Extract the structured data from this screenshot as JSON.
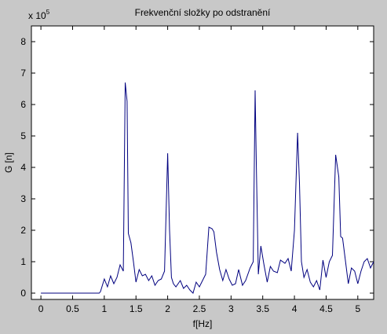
{
  "chart_data": {
    "type": "line",
    "title": "Frekvenční složky po odstranění",
    "xlabel": "f[Hz]",
    "ylabel": "G [n]",
    "y_multiplier_label": "x 10",
    "y_multiplier_exponent": "5",
    "xlim": [
      -0.15,
      5.25
    ],
    "ylim": [
      -0.2,
      8.5
    ],
    "xticks": [
      0,
      0.5,
      1,
      1.5,
      2,
      2.5,
      3,
      3.5,
      4,
      4.5,
      5
    ],
    "xtick_labels": [
      "0",
      "0.5",
      "1",
      "1.5",
      "2",
      "2.5",
      "3",
      "3.5",
      "4",
      "4.5",
      "5"
    ],
    "yticks": [
      0,
      1,
      2,
      3,
      4,
      5,
      6,
      7,
      8
    ],
    "ytick_labels": [
      "0",
      "1",
      "2",
      "3",
      "4",
      "5",
      "6",
      "7",
      "8"
    ],
    "grid": false,
    "line_color": "#00007f",
    "background_color": "#ffffff",
    "figure_color": "#c8c8c8",
    "series": [
      {
        "x": [
          0.0,
          0.92,
          0.94,
          1.0,
          1.05,
          1.1,
          1.15,
          1.2,
          1.25,
          1.3,
          1.33,
          1.36,
          1.38,
          1.42,
          1.46,
          1.5,
          1.55,
          1.6,
          1.65,
          1.7,
          1.75,
          1.8,
          1.85,
          1.9,
          1.95,
          2.0,
          2.03,
          2.06,
          2.09,
          2.13,
          2.2,
          2.25,
          2.3,
          2.35,
          2.4,
          2.45,
          2.5,
          2.55,
          2.6,
          2.65,
          2.7,
          2.73,
          2.77,
          2.82,
          2.87,
          2.92,
          2.97,
          3.02,
          3.07,
          3.12,
          3.18,
          3.23,
          3.3,
          3.35,
          3.38,
          3.4,
          3.43,
          3.47,
          3.52,
          3.57,
          3.62,
          3.67,
          3.73,
          3.78,
          3.85,
          3.9,
          3.95,
          4.0,
          4.05,
          4.08,
          4.11,
          4.15,
          4.2,
          4.25,
          4.3,
          4.35,
          4.4,
          4.45,
          4.5,
          4.55,
          4.6,
          4.65,
          4.7,
          4.73,
          4.76,
          4.8,
          4.85,
          4.9,
          4.95,
          5.0,
          5.05,
          5.1,
          5.15,
          5.2,
          5.25
        ],
        "y": [
          0.0,
          0.0,
          0.05,
          0.45,
          0.2,
          0.55,
          0.3,
          0.5,
          0.9,
          0.7,
          6.7,
          6.1,
          1.9,
          1.6,
          1.0,
          0.35,
          0.75,
          0.55,
          0.6,
          0.4,
          0.55,
          0.25,
          0.4,
          0.45,
          0.7,
          4.45,
          2.0,
          0.5,
          0.3,
          0.2,
          0.4,
          0.15,
          0.25,
          0.1,
          0.0,
          0.35,
          0.2,
          0.4,
          0.6,
          2.1,
          2.05,
          1.95,
          1.3,
          0.75,
          0.4,
          0.75,
          0.45,
          0.25,
          0.3,
          0.75,
          0.25,
          0.4,
          0.8,
          1.0,
          6.45,
          4.0,
          0.6,
          1.5,
          0.9,
          0.35,
          0.85,
          0.7,
          0.65,
          1.05,
          0.95,
          1.1,
          0.7,
          2.0,
          5.1,
          3.5,
          1.0,
          0.5,
          0.75,
          0.35,
          0.2,
          0.4,
          0.1,
          1.05,
          0.5,
          1.0,
          1.2,
          4.4,
          3.7,
          1.8,
          1.75,
          1.1,
          0.3,
          0.8,
          0.7,
          0.3,
          0.7,
          1.0,
          1.1,
          0.8,
          1.0
        ]
      }
    ]
  }
}
